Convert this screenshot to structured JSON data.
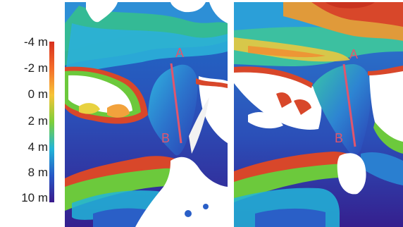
{
  "legend": {
    "labels": [
      "-4 m",
      "-2 m",
      "0 m",
      "2 m",
      "4 m",
      "8 m",
      "10 m"
    ],
    "colors": [
      "#d7301f",
      "#f46d2a",
      "#f6c437",
      "#7ccf3a",
      "#22b5d8",
      "#2758c6",
      "#3a1a8c"
    ]
  },
  "panels": [
    {
      "label_top": "A",
      "label_bottom": "B"
    },
    {
      "label_top": "A",
      "label_bottom": "B"
    }
  ],
  "colors": {
    "transect": "#e0566e",
    "marker": "#e0566e",
    "background": "#ffffff"
  }
}
